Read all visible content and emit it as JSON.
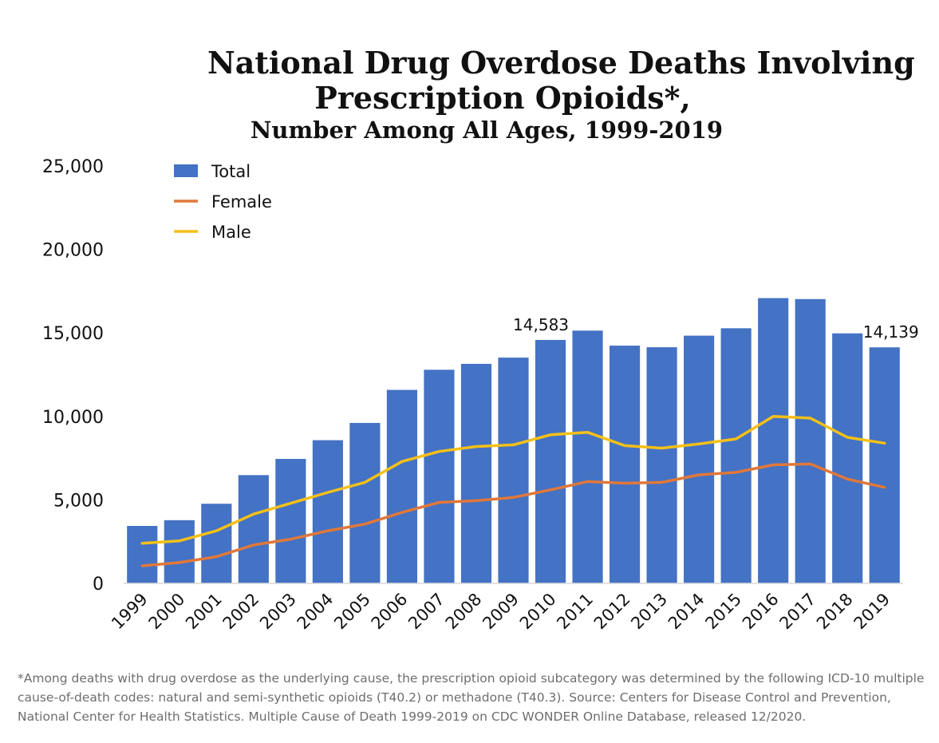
{
  "chart_data": {
    "type": "bar",
    "title": "National Drug Overdose Deaths Involving",
    "title_line2": "Prescription Opioids*,",
    "subtitle": "Number Among All Ages, 1999-2019",
    "categories": [
      "1999",
      "2000",
      "2001",
      "2002",
      "2003",
      "2004",
      "2005",
      "2006",
      "2007",
      "2008",
      "2009",
      "2010",
      "2011",
      "2012",
      "2013",
      "2014",
      "2015",
      "2016",
      "2017",
      "2018",
      "2019"
    ],
    "series": [
      {
        "name": "Total",
        "type": "bar",
        "color": "#4472c4",
        "values": [
          3442,
          3785,
          4770,
          6485,
          7456,
          8577,
          9612,
          11589,
          12796,
          13149,
          13523,
          14583,
          15140,
          14240,
          14145,
          14838,
          15281,
          17087,
          17029,
          14975,
          14139
        ]
      },
      {
        "name": "Female",
        "type": "line",
        "color": "#e0783a",
        "values": [
          1050,
          1250,
          1600,
          2300,
          2650,
          3150,
          3550,
          4250,
          4850,
          4950,
          5150,
          5600,
          6100,
          6000,
          6050,
          6500,
          6650,
          7100,
          7150,
          6250,
          5750
        ]
      },
      {
        "name": "Male",
        "type": "line",
        "color": "#f5c018",
        "values": [
          2400,
          2550,
          3150,
          4150,
          4800,
          5450,
          6050,
          7300,
          7900,
          8200,
          8300,
          8900,
          9050,
          8250,
          8100,
          8350,
          8650,
          10000,
          9900,
          8750,
          8400
        ]
      }
    ],
    "data_labels": [
      {
        "category": "2010",
        "text": "14,583"
      },
      {
        "category": "2019",
        "text": "14,139"
      }
    ],
    "ylim": [
      0,
      25000
    ],
    "yticks": [
      0,
      5000,
      10000,
      15000,
      20000,
      25000
    ],
    "ytick_labels": [
      "0",
      "5,000",
      "10,000",
      "15,000",
      "20,000",
      "25,000"
    ],
    "grid": false,
    "legend": "top-left"
  },
  "footnote": "*Among deaths with drug overdose as the underlying cause, the prescription opioid subcategory was determined by the following ICD-10 multiple cause-of-death codes: natural and semi-synthetic opioids (T40.2) or methadone (T40.3). Source: Centers for Disease Control and Prevention, National Center for Health Statistics. Multiple Cause of Death 1999-2019 on CDC WONDER Online Database, released 12/2020."
}
